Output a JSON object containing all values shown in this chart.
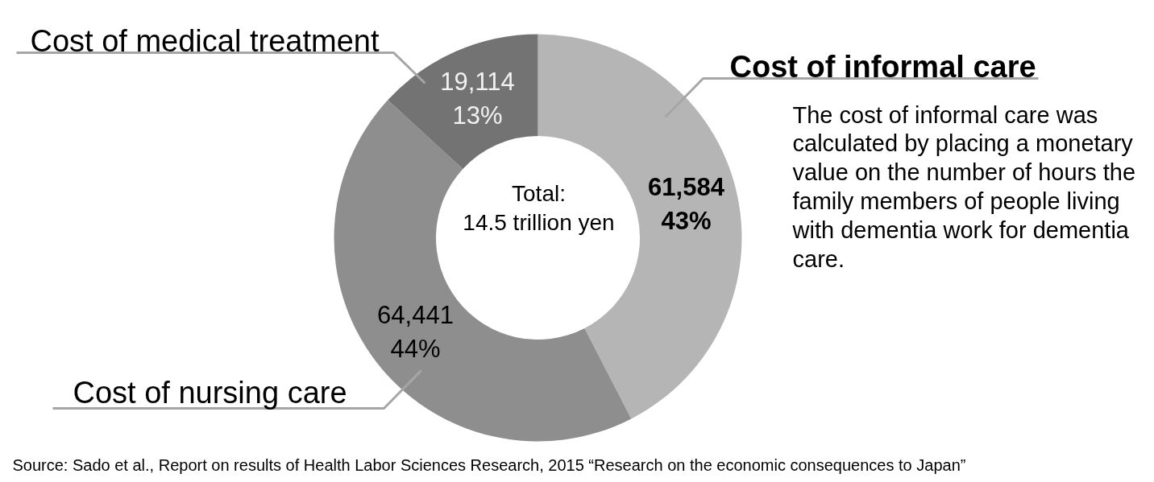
{
  "chart_data": {
    "type": "donut",
    "categories": [
      "Cost of informal care",
      "Cost of nursing care",
      "Cost of medical treatment"
    ],
    "values": [
      61584,
      64441,
      19114
    ],
    "colors": [
      "#b5b5b5",
      "#8e8e8e",
      "#737373"
    ],
    "value_labels": [
      "61,584\n43%",
      "64,441\n44%",
      "19,114\n13%"
    ],
    "annotations": [
      "Total:\n14.5 trillion yen",
      "The cost of informal care was\ncalculated by placing a monetary\nvalue on the number of hours the\nfamily members of people living\nwith dementia work for dementia\ncare.",
      "Source: Sado et al.,   Report on results of Health Labor Sciences Research,  2015 “Research on the economic consequences to Japan”"
    ]
  }
}
